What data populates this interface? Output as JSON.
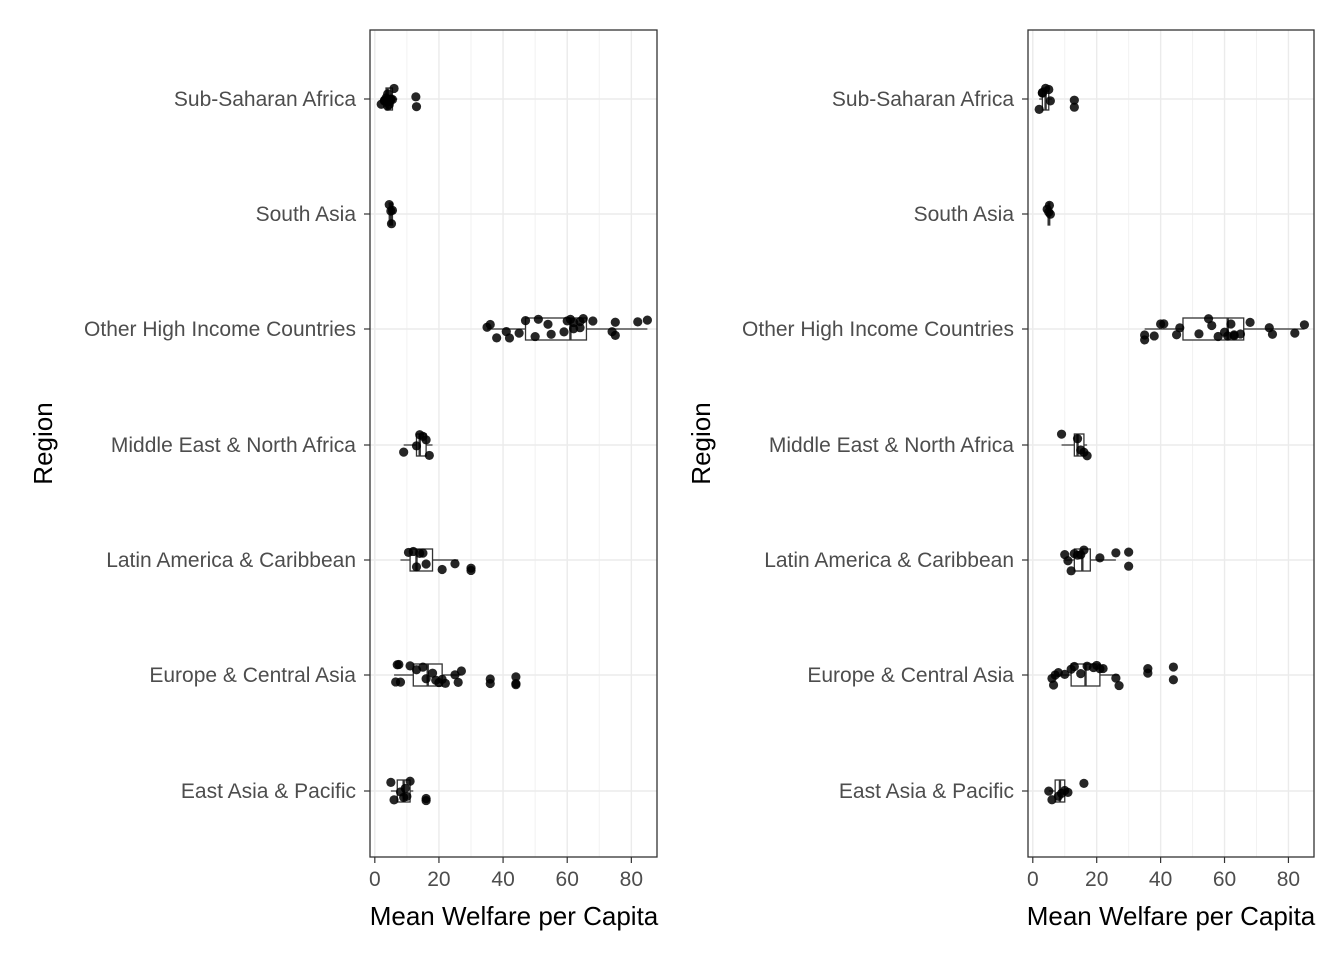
{
  "chart_data": [
    {
      "type": "boxplot-with-jitter",
      "orientation": "horizontal",
      "xlabel": "Mean Welfare per Capita",
      "ylabel": "Region",
      "xlim": [
        -1.5,
        88
      ],
      "xticks": [
        0,
        20,
        40,
        60,
        80
      ],
      "grid": true,
      "categories": [
        "Sub-Saharan Africa",
        "South Asia",
        "Other High Income Countries",
        "Middle East & North Africa",
        "Latin America & Caribbean",
        "Europe & Central Asia",
        "East Asia & Pacific"
      ],
      "boxes": [
        {
          "category": "Sub-Saharan Africa",
          "q1": 3.5,
          "median": 4,
          "q3": 5.5,
          "whisker_low": 2,
          "whisker_high": 7
        },
        {
          "category": "South Asia",
          "q1": 4.5,
          "median": 5,
          "q3": 5.5,
          "whisker_low": 4.2,
          "whisker_high": 5.8
        },
        {
          "category": "Other High Income Countries",
          "q1": 47,
          "median": 61,
          "q3": 66,
          "whisker_low": 35,
          "whisker_high": 85
        },
        {
          "category": "Middle East & North Africa",
          "q1": 13,
          "median": 14,
          "q3": 16,
          "whisker_low": 9,
          "whisker_high": 18
        },
        {
          "category": "Latin America & Caribbean",
          "q1": 11,
          "median": 13,
          "q3": 18,
          "whisker_low": 8,
          "whisker_high": 26
        },
        {
          "category": "Europe & Central Asia",
          "q1": 12,
          "median": 16.5,
          "q3": 21,
          "whisker_low": 6,
          "whisker_high": 27
        },
        {
          "category": "East Asia & Pacific",
          "q1": 7,
          "median": 9,
          "q3": 11,
          "whisker_low": 5,
          "whisker_high": 12
        }
      ],
      "points": [
        {
          "category": "Sub-Saharan Africa",
          "values": [
            2,
            3,
            3.5,
            4,
            4,
            4.5,
            5,
            5,
            5.5,
            6,
            3,
            4.5,
            12.8,
            13
          ]
        },
        {
          "category": "South Asia",
          "values": [
            4.5,
            5,
            5.5,
            5.2
          ]
        },
        {
          "category": "Other High Income Countries",
          "values": [
            35,
            36,
            38,
            41,
            42,
            45,
            47,
            50,
            51,
            54,
            55,
            59,
            60,
            61,
            62,
            62,
            64,
            64,
            65,
            68,
            74,
            75,
            75,
            82,
            85
          ]
        },
        {
          "category": "Middle East & North Africa",
          "values": [
            9,
            13,
            14,
            15,
            16,
            17
          ]
        },
        {
          "category": "Latin America & Caribbean",
          "values": [
            10.5,
            12,
            13,
            14,
            15,
            16,
            21,
            25,
            30,
            30
          ]
        },
        {
          "category": "Europe & Central Asia",
          "values": [
            6.5,
            7,
            7.5,
            8,
            11,
            13,
            15,
            16,
            18,
            19,
            20,
            21,
            22,
            25,
            26,
            27,
            36,
            36,
            44,
            44,
            44
          ]
        },
        {
          "category": "East Asia & Pacific",
          "values": [
            5,
            6,
            8,
            9,
            9.5,
            10,
            11,
            16,
            16
          ]
        }
      ]
    },
    {
      "type": "boxplot-with-jitter",
      "orientation": "horizontal",
      "xlabel": "Mean Welfare per Capita",
      "ylabel": "Region",
      "xlim": [
        -1.5,
        88
      ],
      "xticks": [
        0,
        20,
        40,
        60,
        80
      ],
      "grid": true,
      "categories": [
        "Sub-Saharan Africa",
        "South Asia",
        "Other High Income Countries",
        "Middle East & North Africa",
        "Latin America & Caribbean",
        "Europe & Central Asia",
        "East Asia & Pacific"
      ],
      "boxes": [
        {
          "category": "Sub-Saharan Africa",
          "q1": 3,
          "median": 4,
          "q3": 5,
          "whisker_low": 2,
          "whisker_high": 6
        },
        {
          "category": "South Asia",
          "q1": 4.8,
          "median": 5,
          "q3": 5.3,
          "whisker_low": 4.3,
          "whisker_high": 5.8
        },
        {
          "category": "Other High Income Countries",
          "q1": 47,
          "median": 61,
          "q3": 66,
          "whisker_low": 35,
          "whisker_high": 85
        },
        {
          "category": "Middle East & North Africa",
          "q1": 13,
          "median": 14,
          "q3": 16,
          "whisker_low": 9,
          "whisker_high": 17
        },
        {
          "category": "Latin America & Caribbean",
          "q1": 13,
          "median": 15.5,
          "q3": 18,
          "whisker_low": 10,
          "whisker_high": 26
        },
        {
          "category": "Europe & Central Asia",
          "q1": 12,
          "median": 16.5,
          "q3": 21,
          "whisker_low": 6,
          "whisker_high": 27
        },
        {
          "category": "East Asia & Pacific",
          "q1": 7,
          "median": 8.5,
          "q3": 10,
          "whisker_low": 5,
          "whisker_high": 11
        }
      ],
      "points": [
        {
          "category": "Sub-Saharan Africa",
          "values": [
            2,
            3,
            3,
            4,
            5,
            5.5,
            13,
            13
          ]
        },
        {
          "category": "South Asia",
          "values": [
            4.5,
            5,
            5.5,
            5.2
          ]
        },
        {
          "category": "Other High Income Countries",
          "values": [
            35,
            35,
            38,
            40,
            41,
            45,
            46,
            52,
            55,
            56,
            58,
            60,
            61,
            62,
            63,
            63,
            65,
            68,
            74,
            75,
            82,
            85
          ]
        },
        {
          "category": "Middle East & North Africa",
          "values": [
            9,
            14,
            15,
            16,
            17
          ]
        },
        {
          "category": "Latin America & Caribbean",
          "values": [
            10,
            11,
            12,
            13,
            14,
            15,
            16,
            21,
            26,
            30,
            30
          ]
        },
        {
          "category": "Europe & Central Asia",
          "values": [
            6,
            6.5,
            7,
            8,
            10,
            12,
            13,
            15,
            17,
            19,
            20,
            21,
            22,
            26,
            27,
            36,
            36,
            44,
            44
          ]
        },
        {
          "category": "East Asia & Pacific",
          "values": [
            5,
            6,
            8,
            9,
            10,
            11,
            16
          ]
        }
      ]
    }
  ]
}
